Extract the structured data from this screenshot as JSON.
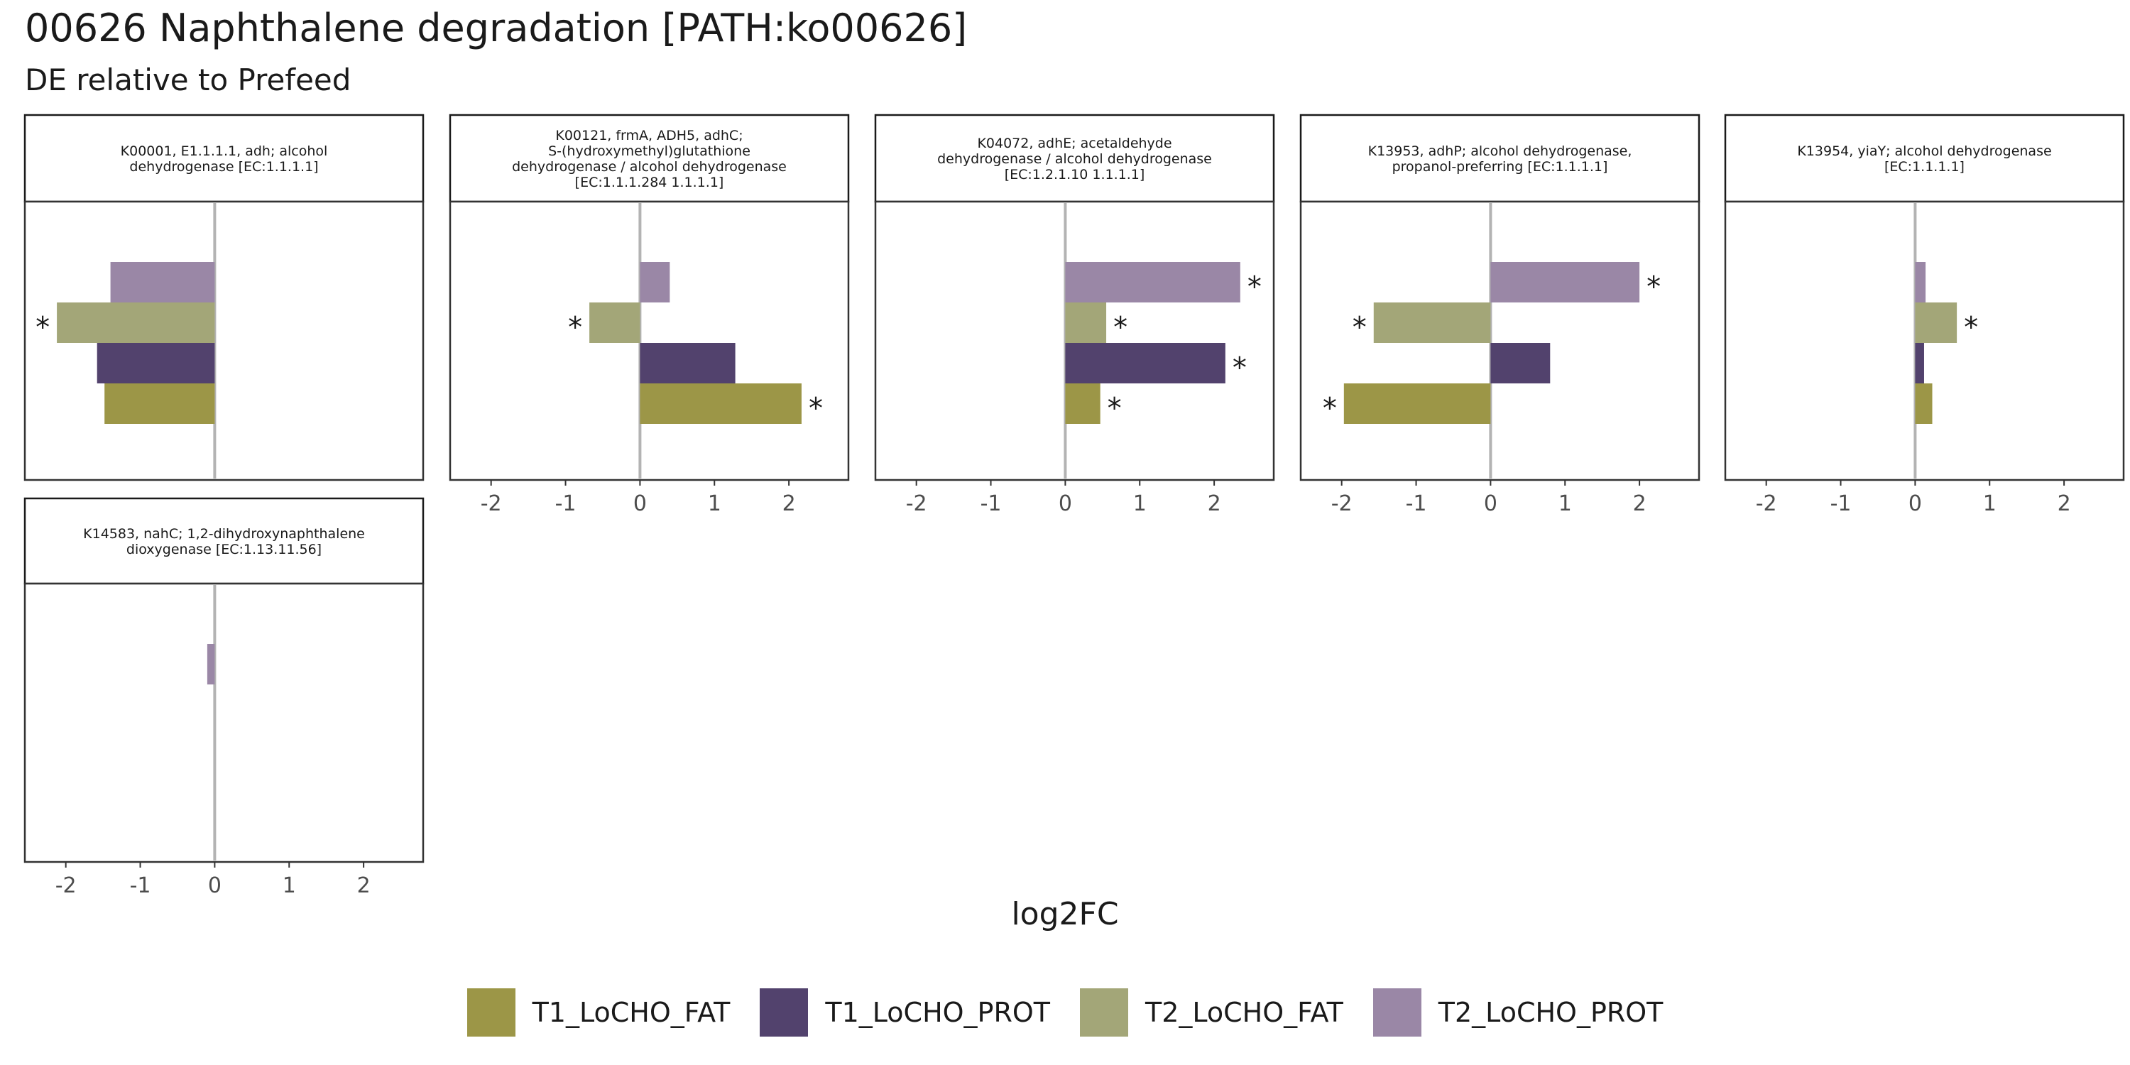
{
  "title": "00626 Naphthalene degradation [PATH:ko00626]",
  "subtitle": "DE relative to Prefeed",
  "legend": {
    "items": [
      {
        "label": "T1_LoCHO_FAT",
        "color": "#9c9647"
      },
      {
        "label": "T1_LoCHO_PROT",
        "color": "#52426d"
      },
      {
        "label": "T2_LoCHO_FAT",
        "color": "#a3a678"
      },
      {
        "label": "T2_LoCHO_PROT",
        "color": "#9a87a6"
      }
    ]
  },
  "chart_data": {
    "type": "bar",
    "orientation": "horizontal",
    "xlabel": "log2FC",
    "xlim": [
      -2.55,
      2.8
    ],
    "xticks": [
      -2,
      -1,
      0,
      1,
      2
    ],
    "series_order_bottom_to_top": [
      "T1_LoCHO_FAT",
      "T1_LoCHO_PROT",
      "T2_LoCHO_FAT",
      "T2_LoCHO_PROT"
    ],
    "significance_marker": "*",
    "panels": [
      {
        "strip": [
          "K00001, E1.1.1.1, adh; alcohol",
          "dehydrogenase [EC:1.1.1.1]"
        ],
        "values": {
          "T1_LoCHO_FAT": -1.48,
          "T1_LoCHO_PROT": -1.58,
          "T2_LoCHO_FAT": -2.12,
          "T2_LoCHO_PROT": -1.4
        },
        "significant": [
          "T2_LoCHO_FAT"
        ]
      },
      {
        "strip": [
          "K00121, frmA, ADH5, adhC;",
          "S-(hydroxymethyl)glutathione",
          "dehydrogenase / alcohol dehydrogenase",
          "[EC:1.1.1.284 1.1.1.1]"
        ],
        "values": {
          "T1_LoCHO_FAT": 2.17,
          "T1_LoCHO_PROT": 1.28,
          "T2_LoCHO_FAT": -0.68,
          "T2_LoCHO_PROT": 0.4
        },
        "significant": [
          "T1_LoCHO_FAT",
          "T2_LoCHO_FAT"
        ]
      },
      {
        "strip": [
          "K04072, adhE; acetaldehyde",
          "dehydrogenase / alcohol dehydrogenase",
          "[EC:1.2.1.10 1.1.1.1]"
        ],
        "values": {
          "T1_LoCHO_FAT": 0.47,
          "T1_LoCHO_PROT": 2.15,
          "T2_LoCHO_FAT": 0.55,
          "T2_LoCHO_PROT": 2.35
        },
        "significant": [
          "T1_LoCHO_FAT",
          "T1_LoCHO_PROT",
          "T2_LoCHO_FAT",
          "T2_LoCHO_PROT"
        ]
      },
      {
        "strip": [
          "K13953, adhP; alcohol dehydrogenase,",
          "propanol-preferring [EC:1.1.1.1]"
        ],
        "values": {
          "T1_LoCHO_FAT": -1.97,
          "T1_LoCHO_PROT": 0.8,
          "T2_LoCHO_FAT": -1.57,
          "T2_LoCHO_PROT": 2.0
        },
        "significant": [
          "T1_LoCHO_FAT",
          "T2_LoCHO_FAT",
          "T2_LoCHO_PROT"
        ]
      },
      {
        "strip": [
          "K13954, yiaY; alcohol dehydrogenase",
          "[EC:1.1.1.1]"
        ],
        "values": {
          "T1_LoCHO_FAT": 0.23,
          "T1_LoCHO_PROT": 0.12,
          "T2_LoCHO_FAT": 0.56,
          "T2_LoCHO_PROT": 0.14
        },
        "significant": [
          "T2_LoCHO_FAT"
        ]
      },
      {
        "strip": [
          "K14583, nahC; 1,2-dihydroxynaphthalene",
          "dioxygenase [EC:1.13.11.56]"
        ],
        "values": {
          "T1_LoCHO_FAT": null,
          "T1_LoCHO_PROT": null,
          "T2_LoCHO_FAT": null,
          "T2_LoCHO_PROT": -0.1
        },
        "significant": []
      }
    ]
  }
}
